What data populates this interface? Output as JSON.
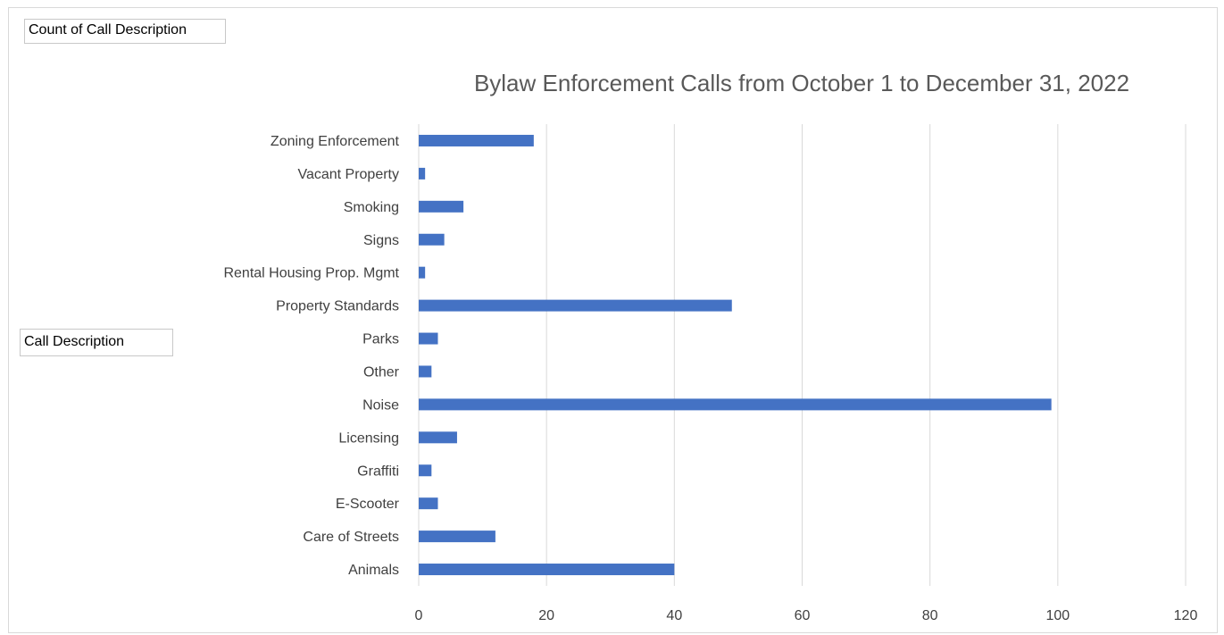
{
  "pivot": {
    "value_field": "Count of Call Description",
    "row_field": "Call Description"
  },
  "chart_data": {
    "type": "bar",
    "orientation": "horizontal",
    "title": "Bylaw Enforcement Calls from October 1 to December 31, 2022",
    "xlabel": "",
    "ylabel": "",
    "categories": [
      "Animals",
      "Care of Streets",
      "E-Scooter",
      "Graffiti",
      "Licensing",
      "Noise",
      "Other",
      "Parks",
      "Property Standards",
      "Rental Housing Prop. Mgmt",
      "Signs",
      "Smoking",
      "Vacant Property",
      "Zoning Enforcement"
    ],
    "values": [
      40,
      12,
      3,
      2,
      6,
      99,
      2,
      3,
      49,
      1,
      4,
      7,
      1,
      18
    ],
    "xlim": [
      0,
      120
    ],
    "xticks": [
      0,
      20,
      40,
      60,
      80,
      100,
      120
    ],
    "grid": "vertical",
    "legend": "none",
    "bar_color": "#4472C4",
    "grid_color": "#d9d9d9"
  }
}
